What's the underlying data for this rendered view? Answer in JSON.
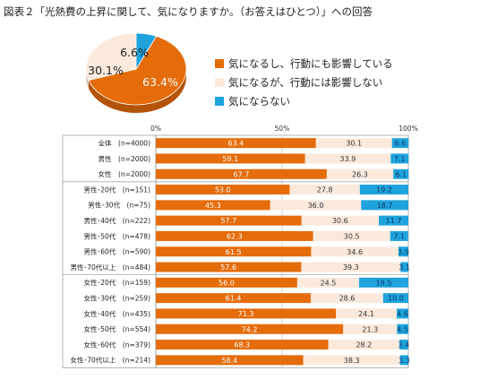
{
  "title": "図表２「光熱費の上昇に関して、気になりますか。（お答えはひとつ）」への回答",
  "colors": {
    "s1": "#e46c0a",
    "s2": "#fbe9dc",
    "s3": "#1fa3dd"
  },
  "pie": {
    "values": [
      63.4,
      30.1,
      6.6
    ],
    "labels": [
      "63.4%",
      "30.1%",
      "6.6%"
    ]
  },
  "legend": [
    "気になるし、行動にも影響している",
    "気になるが、行動には影響しない",
    "気にならない"
  ],
  "chart_data": {
    "type": "bar",
    "orientation": "horizontal",
    "stacked": true,
    "xlim": [
      0,
      100
    ],
    "xticks": [
      "0%",
      "50%",
      "100%"
    ],
    "categories": [
      "全体　(n=4000)",
      "男性　(n=2000)",
      "女性　(n=2000)",
      "男性･20代　(n=151)",
      "男性･30代　(n=75)",
      "男性･40代　(n=222)",
      "男性･50代　(n=478)",
      "男性･60代　(n=590)",
      "男性･70代以上　(n=484)",
      "女性･20代　(n=159)",
      "女性･30代　(n=259)",
      "女性･40代　(n=435)",
      "女性･50代　(n=554)",
      "女性･60代　(n=379)",
      "女性･70代以上　(n=214)"
    ],
    "series": [
      {
        "name": "気になるし、行動にも影響している",
        "values": [
          63.4,
          59.1,
          67.7,
          53.0,
          45.3,
          57.7,
          62.3,
          61.5,
          57.6,
          56.0,
          61.4,
          71.3,
          74.2,
          68.3,
          58.4
        ],
        "labels": [
          "63.4",
          "59.1",
          "67.7",
          "53.0",
          "45.3",
          "57.7",
          "62.3",
          "61.5",
          "57.6",
          "56.0",
          "61.4",
          "71.3",
          "74.2",
          "68.3",
          "58.4"
        ]
      },
      {
        "name": "気になるが、行動には影響しない",
        "values": [
          30.1,
          33.9,
          26.3,
          27.8,
          36.0,
          30.6,
          30.5,
          34.6,
          39.3,
          24.5,
          28.6,
          24.1,
          21.3,
          28.2,
          38.3
        ],
        "labels": [
          "30.1",
          "33.9",
          "26.3",
          "27.8",
          "36.0",
          "30.6",
          "30.5",
          "34.6",
          "39.3",
          "24.5",
          "28.6",
          "24.1",
          "21.3",
          "28.2",
          "38.3"
        ]
      },
      {
        "name": "気にならない",
        "values": [
          6.6,
          7.1,
          6.1,
          19.2,
          18.7,
          11.7,
          7.1,
          3.9,
          3.1,
          19.5,
          10.0,
          4.6,
          4.5,
          3.4,
          3.3
        ],
        "labels": [
          "6.6",
          "7.1",
          "6.1",
          "19.2",
          "18.7",
          "11.7",
          "7.1",
          "3.9",
          "3.1",
          "19.5",
          "10.0",
          "4.6",
          "4.5",
          "3.4",
          "3.3"
        ]
      }
    ]
  }
}
